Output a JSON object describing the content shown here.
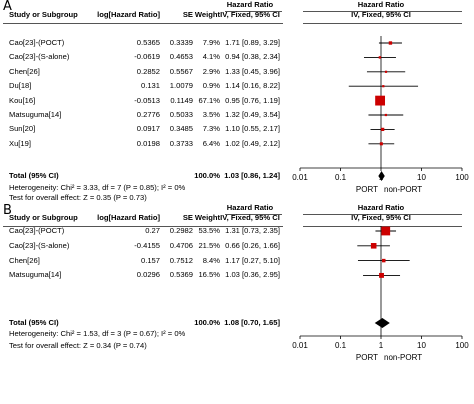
{
  "chart_data": [
    {
      "type": "forest",
      "panel": "A",
      "header": {
        "study": "Study or Subgroup",
        "loghr": "log[Hazard Ratio]",
        "se": "SE",
        "weight": "Weight",
        "hr_title": "Hazard Ratio",
        "hr_method": "IV, Fixed, 95% CI",
        "plot_title": "Hazard Ratio",
        "plot_method": "IV, Fixed, 95% CI"
      },
      "studies": [
        {
          "name": "Cao[23]-(POCT)",
          "loghr": "0.5365",
          "se": "0.3339",
          "weight": "7.9%",
          "ci_text": "1.71 [0.89, 3.29]",
          "hr": 1.71,
          "lo": 0.89,
          "hi": 3.29,
          "w": 7.9
        },
        {
          "name": "Cao[23]-(S-alone)",
          "loghr": "-0.0619",
          "se": "0.4653",
          "weight": "4.1%",
          "ci_text": "0.94 [0.38, 2.34]",
          "hr": 0.94,
          "lo": 0.38,
          "hi": 2.34,
          "w": 4.1
        },
        {
          "name": "Chen[26]",
          "loghr": "0.2852",
          "se": "0.5567",
          "weight": "2.9%",
          "ci_text": "1.33 [0.45, 3.96]",
          "hr": 1.33,
          "lo": 0.45,
          "hi": 3.96,
          "w": 2.9
        },
        {
          "name": "Du[18]",
          "loghr": "0.131",
          "se": "1.0079",
          "weight": "0.9%",
          "ci_text": "1.14 [0.16, 8.22]",
          "hr": 1.14,
          "lo": 0.16,
          "hi": 8.22,
          "w": 0.9
        },
        {
          "name": "Kou[16]",
          "loghr": "-0.0513",
          "se": "0.1149",
          "weight": "67.1%",
          "ci_text": "0.95 [0.76, 1.19]",
          "hr": 0.95,
          "lo": 0.76,
          "hi": 1.19,
          "w": 67.1
        },
        {
          "name": "Matsuguma[14]",
          "loghr": "0.2776",
          "se": "0.5033",
          "weight": "3.5%",
          "ci_text": "1.32 [0.49, 3.54]",
          "hr": 1.32,
          "lo": 0.49,
          "hi": 3.54,
          "w": 3.5
        },
        {
          "name": "Sun[20]",
          "loghr": "0.0917",
          "se": "0.3485",
          "weight": "7.3%",
          "ci_text": "1.10 [0.55, 2.17]",
          "hr": 1.1,
          "lo": 0.55,
          "hi": 2.17,
          "w": 7.3
        },
        {
          "name": "Xu[19]",
          "loghr": "0.0198",
          "se": "0.3733",
          "weight": "6.4%",
          "ci_text": "1.02 [0.49, 2.12]",
          "hr": 1.02,
          "lo": 0.49,
          "hi": 2.12,
          "w": 6.4
        }
      ],
      "total": {
        "label": "Total (95% CI)",
        "weight": "100.0%",
        "ci_text": "1.03 [0.86, 1.24]",
        "hr": 1.03,
        "lo": 0.86,
        "hi": 1.24
      },
      "heterogeneity": "Heterogeneity: Chi² = 3.33, df = 7 (P = 0.85); I² = 0%",
      "overall_effect": "Test for overall effect: Z = 0.35 (P = 0.73)",
      "axis": {
        "scale": "log",
        "ticks": [
          0.01,
          0.1,
          1,
          10,
          100
        ],
        "tick_labels": [
          "0.01",
          "0.1",
          "1",
          "10",
          "100"
        ],
        "left_label": "PORT",
        "right_label": "non-PORT"
      }
    },
    {
      "type": "forest",
      "panel": "B",
      "header": {
        "study": "Study or Subgroup",
        "loghr": "log[Hazard Ratio]",
        "se": "SE",
        "weight": "Weight",
        "hr_title": "Hazard Ratio",
        "hr_method": "IV, Fixed, 95% CI",
        "plot_title": "Hazard Ratio",
        "plot_method": "IV, Fixed, 95% CI"
      },
      "studies": [
        {
          "name": "Cao[23]-(POCT)",
          "loghr": "0.27",
          "se": "0.2982",
          "weight": "53.5%",
          "ci_text": "1.31 [0.73, 2.35]",
          "hr": 1.31,
          "lo": 0.73,
          "hi": 2.35,
          "w": 53.5
        },
        {
          "name": "Cao[23]-(S-alone)",
          "loghr": "-0.4155",
          "se": "0.4706",
          "weight": "21.5%",
          "ci_text": "0.66 [0.26, 1.66]",
          "hr": 0.66,
          "lo": 0.26,
          "hi": 1.66,
          "w": 21.5
        },
        {
          "name": "Chen[26]",
          "loghr": "0.157",
          "se": "0.7512",
          "weight": "8.4%",
          "ci_text": "1.17 [0.27, 5.10]",
          "hr": 1.17,
          "lo": 0.27,
          "hi": 5.1,
          "w": 8.4
        },
        {
          "name": "Matsuguma[14]",
          "loghr": "0.0296",
          "se": "0.5369",
          "weight": "16.5%",
          "ci_text": "1.03 [0.36, 2.95]",
          "hr": 1.03,
          "lo": 0.36,
          "hi": 2.95,
          "w": 16.5
        }
      ],
      "total": {
        "label": "Total (95% CI)",
        "weight": "100.0%",
        "ci_text": "1.08 [0.70, 1.65]",
        "hr": 1.08,
        "lo": 0.7,
        "hi": 1.65
      },
      "heterogeneity": "Heterogeneity: Chi² = 1.53, df = 3 (P = 0.67); I² = 0%",
      "overall_effect": "Test for overall effect: Z = 0.34 (P = 0.74)",
      "axis": {
        "scale": "log",
        "ticks": [
          0.01,
          0.1,
          1,
          10,
          100
        ],
        "tick_labels": [
          "0.01",
          "0.1",
          "1",
          "10",
          "100"
        ],
        "left_label": "PORT",
        "right_label": "non-PORT"
      }
    }
  ],
  "panels": [
    {
      "label": "A"
    },
    {
      "label": "B"
    }
  ],
  "colors": {
    "marker": "#cc0000",
    "diamond": "#000000",
    "text": "#000000"
  }
}
